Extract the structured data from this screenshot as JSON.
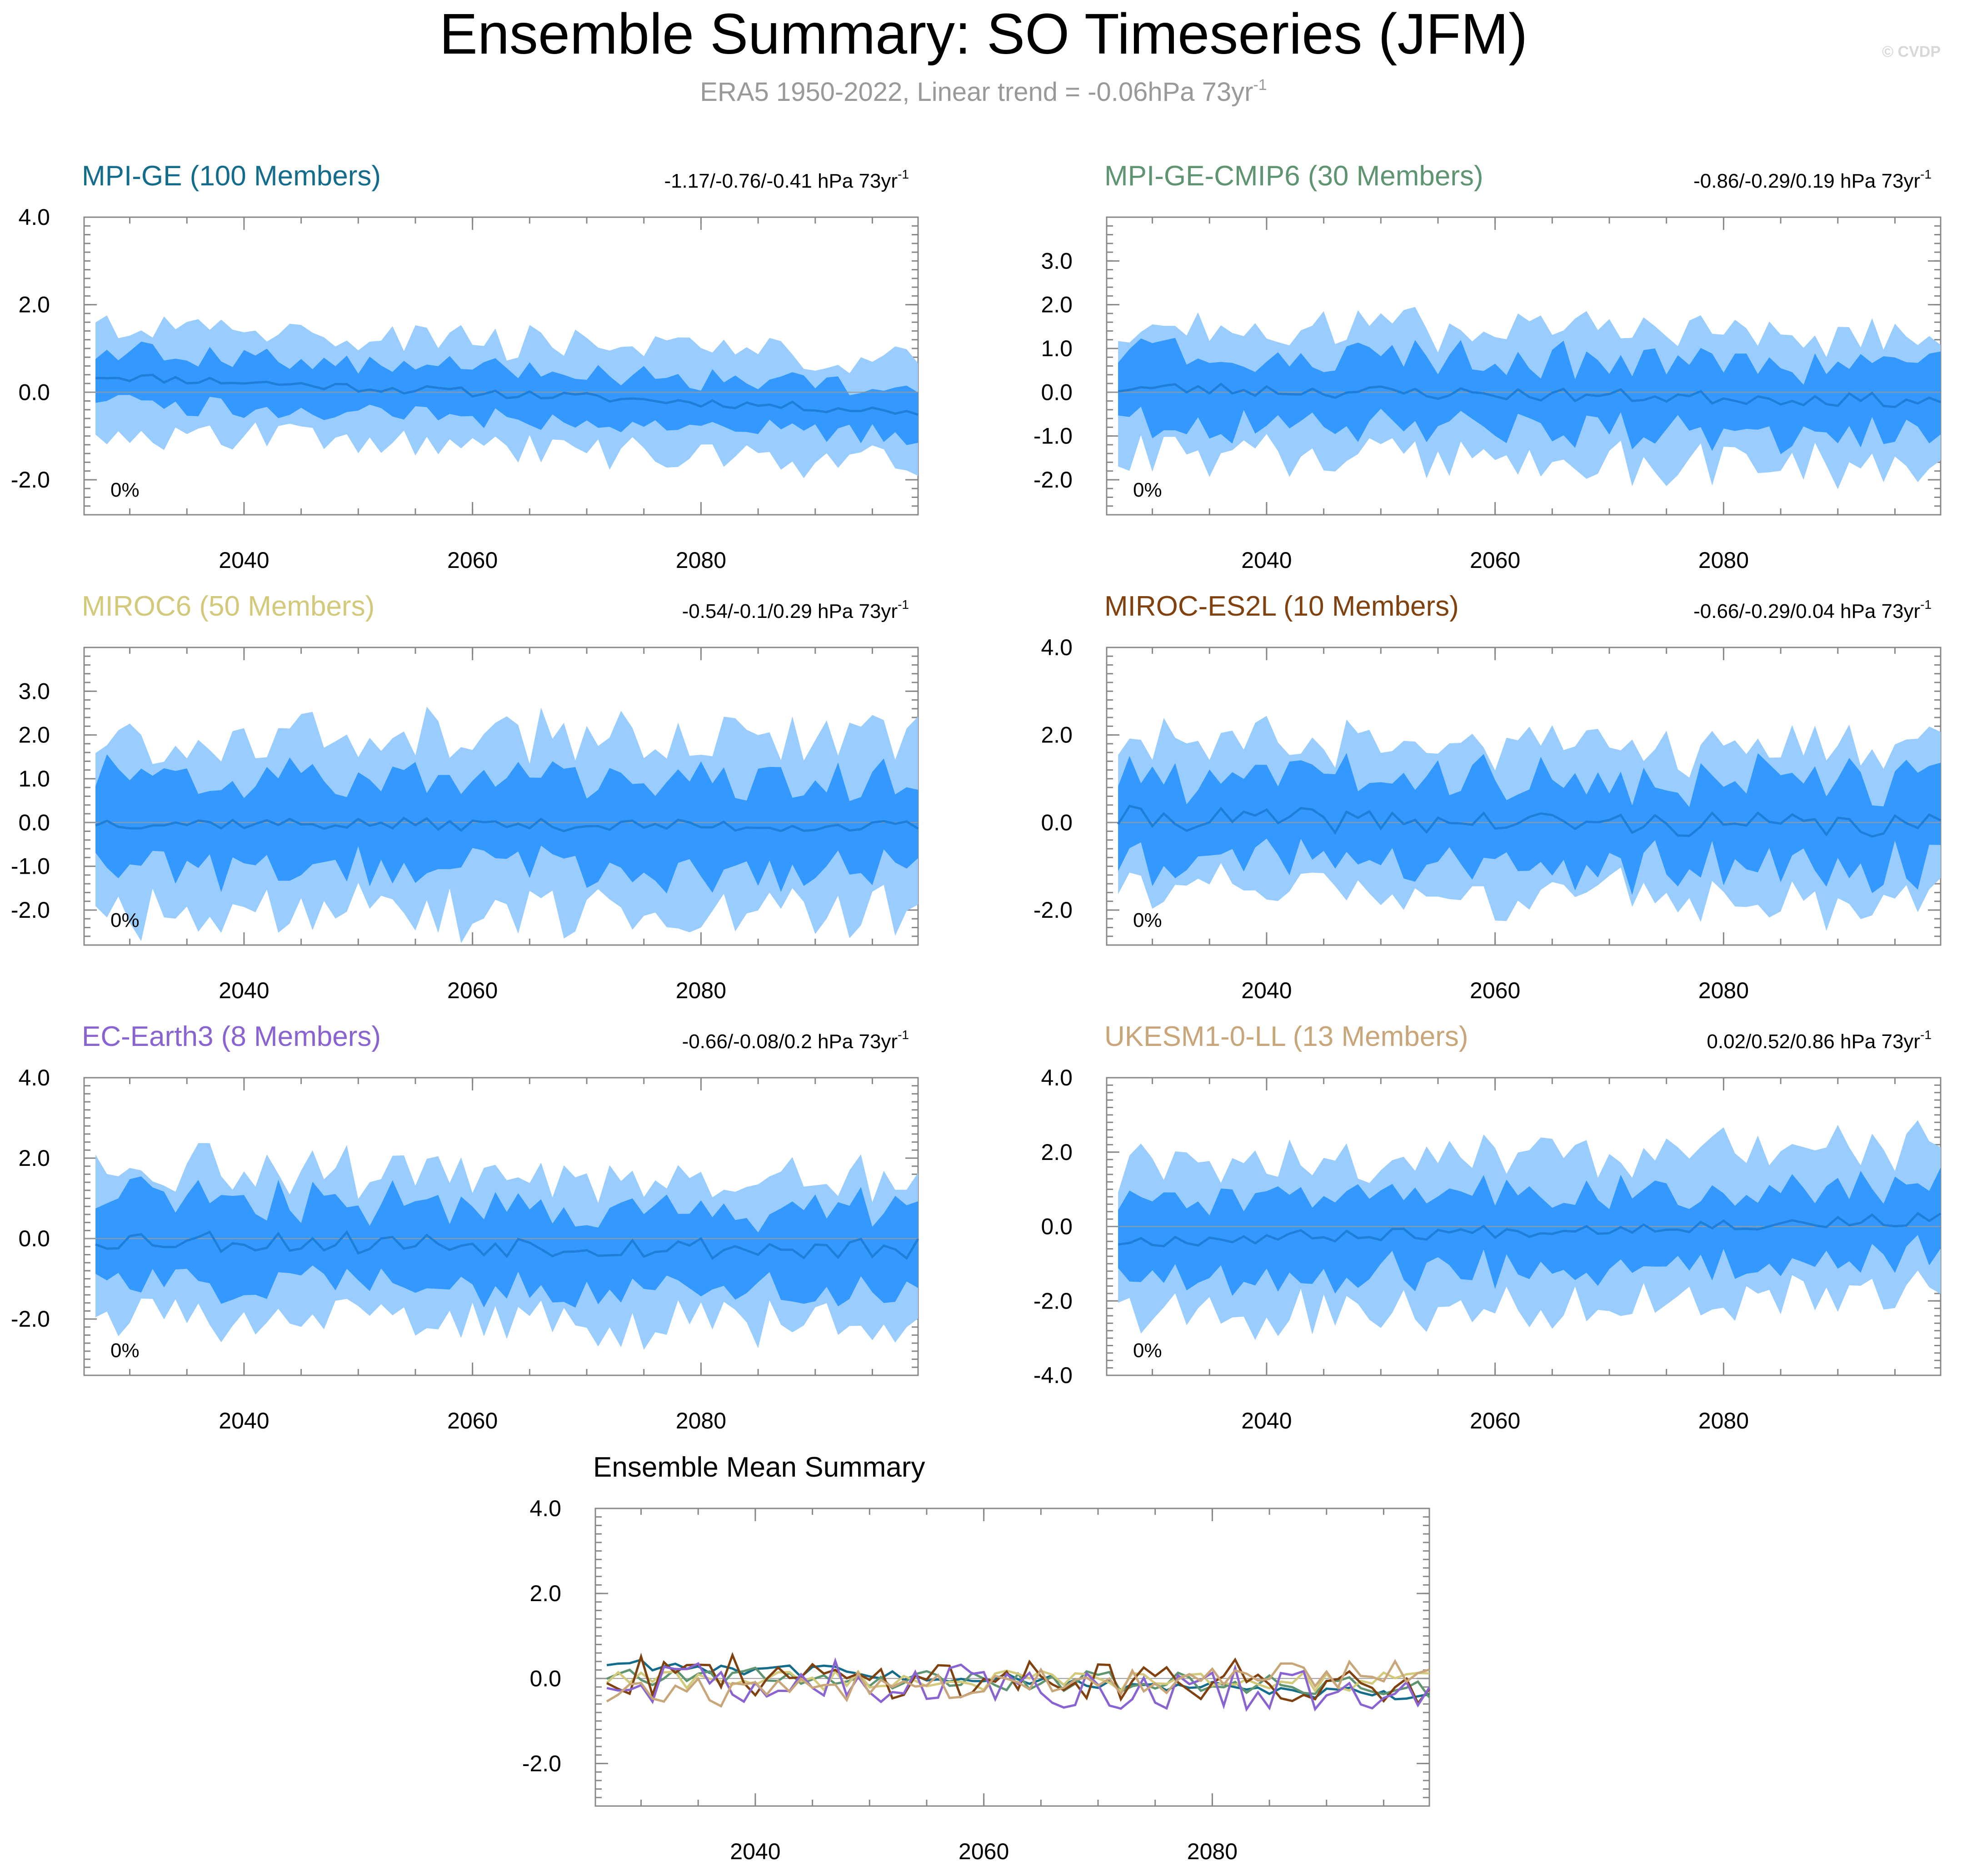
{
  "figure": {
    "title": "Ensemble Summary: SO Timeseries (JFM)",
    "subtitle_prefix": "ERA5 1950-2022, Linear trend = -0.06hPa 73yr",
    "subtitle_sup": "-1",
    "credit": "© CVDP"
  },
  "colors": {
    "outer_band": "#99ccff",
    "inner_band": "#3399ff",
    "mean_line": "#1f7fd8",
    "MPI-GE": "#136c8c",
    "MPI-GE-CMIP6": "#5e9470",
    "MIROC6": "#d2c97a",
    "MIROC-ES2L": "#80410f",
    "EC-Earth3": "#8a63d2",
    "UKESM1-0-LL": "#c9a679"
  },
  "chart_data": [
    {
      "type": "area",
      "id": "mpi-ge",
      "title": "MPI-GE (100 Members)",
      "color_key": "MPI-GE",
      "trend": "-1.17/-0.76/-0.41 hPa 73yr",
      "trend_sup": "-1",
      "percent": "0%",
      "xlim": [
        2026,
        2099
      ],
      "xticks": [
        "2040",
        "2060",
        "2080"
      ],
      "ylim": [
        -2.8,
        4.0
      ],
      "yticks": [
        "4.0",
        "2.0",
        "0.0",
        "-2.0"
      ],
      "mean_start": 0.38,
      "mean_end": -0.45,
      "inner_halfwidth": 0.55,
      "outer_halfwidth": 1.2,
      "noise": 0.3,
      "seed": 11
    },
    {
      "type": "area",
      "id": "mpi-ge-cmip6",
      "title": "MPI-GE-CMIP6 (30 Members)",
      "color_key": "MPI-GE-CMIP6",
      "trend": "-0.86/-0.29/0.19 hPa 73yr",
      "trend_sup": "-1",
      "percent": "0%",
      "xlim": [
        2026,
        2099
      ],
      "xticks": [
        "2040",
        "2060",
        "2080"
      ],
      "ylim": [
        -2.8,
        4.0
      ],
      "yticks": [
        "3.0",
        "2.0",
        "1.0",
        "0.0",
        "-1.0",
        "-2.0"
      ],
      "mean_start": 0.1,
      "mean_end": -0.2,
      "inner_halfwidth": 0.8,
      "outer_halfwidth": 1.5,
      "noise": 0.45,
      "seed": 23
    },
    {
      "type": "area",
      "id": "miroc6",
      "title": "MIROC6 (50 Members)",
      "color_key": "MIROC6",
      "trend": "-0.54/-0.1/0.29 hPa 73yr",
      "trend_sup": "-1",
      "percent": "0%",
      "xlim": [
        2026,
        2099
      ],
      "xticks": [
        "2040",
        "2060",
        "2080"
      ],
      "ylim": [
        -2.8,
        4.0
      ],
      "yticks": [
        "3.0",
        "2.0",
        "1.0",
        "0.0",
        "-1.0",
        "-2.0"
      ],
      "mean_start": 0.0,
      "mean_end": -0.1,
      "inner_halfwidth": 1.05,
      "outer_halfwidth": 2.0,
      "noise": 0.4,
      "seed": 37
    },
    {
      "type": "area",
      "id": "miroc-es2l",
      "title": "MIROC-ES2L (10 Members)",
      "color_key": "MIROC-ES2L",
      "trend": "-0.66/-0.29/0.04 hPa 73yr",
      "trend_sup": "-1",
      "percent": "0%",
      "xlim": [
        2026,
        2099
      ],
      "xticks": [
        "2040",
        "2060",
        "2080"
      ],
      "ylim": [
        -2.8,
        4.0
      ],
      "yticks": [
        "4.0",
        "2.0",
        "0.0",
        "-2.0"
      ],
      "mean_start": 0.1,
      "mean_end": -0.1,
      "inner_halfwidth": 1.0,
      "outer_halfwidth": 1.7,
      "noise": 0.8,
      "seed": 41
    },
    {
      "type": "area",
      "id": "ec-earth3",
      "title": "EC-Earth3 (8 Members)",
      "color_key": "EC-Earth3",
      "trend": "-0.66/-0.08/0.2 hPa 73yr",
      "trend_sup": "-1",
      "percent": "0%",
      "xlim": [
        2026,
        2099
      ],
      "xticks": [
        "2040",
        "2060",
        "2080"
      ],
      "ylim": [
        -3.4,
        4.0
      ],
      "yticks": [
        "4.0",
        "2.0",
        "0.0",
        "-2.0"
      ],
      "mean_start": 0.0,
      "mean_end": -0.3,
      "inner_halfwidth": 1.0,
      "outer_halfwidth": 1.8,
      "noise": 0.85,
      "seed": 53
    },
    {
      "type": "area",
      "id": "ukesm1-0-ll",
      "title": "UKESM1-0-LL (13 Members)",
      "color_key": "UKESM1-0-LL",
      "trend": "0.02/0.52/0.86 hPa 73yr",
      "trend_sup": "-1",
      "percent": "0%",
      "xlim": [
        2026,
        2099
      ],
      "xticks": [
        "2040",
        "2060",
        "2080"
      ],
      "ylim": [
        -4.0,
        4.0
      ],
      "yticks": [
        "4.0",
        "2.0",
        "0.0",
        "-2.0",
        "-4.0"
      ],
      "mean_start": -0.4,
      "mean_end": 0.2,
      "inner_halfwidth": 1.0,
      "outer_halfwidth": 2.0,
      "noise": 0.5,
      "seed": 67
    },
    {
      "type": "line",
      "id": "ensemble-mean",
      "title": "Ensemble Mean Summary",
      "xlim": [
        2026,
        2099
      ],
      "xticks": [
        "2040",
        "2060",
        "2080"
      ],
      "ylim": [
        -3.0,
        4.0
      ],
      "yticks": [
        "4.0",
        "2.0",
        "0.0",
        "-2.0"
      ],
      "series": [
        {
          "name": "MPI-GE",
          "color_key": "MPI-GE",
          "start": 0.38,
          "end": -0.45,
          "noise": 0.15,
          "seed": 11
        },
        {
          "name": "MPI-GE-CMIP6",
          "color_key": "MPI-GE-CMIP6",
          "start": 0.1,
          "end": -0.2,
          "noise": 0.25,
          "seed": 23
        },
        {
          "name": "MIROC6",
          "color_key": "MIROC6",
          "start": 0.0,
          "end": -0.1,
          "noise": 0.25,
          "seed": 37
        },
        {
          "name": "MIROC-ES2L",
          "color_key": "MIROC-ES2L",
          "start": 0.1,
          "end": -0.1,
          "noise": 0.5,
          "seed": 41
        },
        {
          "name": "EC-Earth3",
          "color_key": "EC-Earth3",
          "start": 0.0,
          "end": -0.3,
          "noise": 0.55,
          "seed": 53
        },
        {
          "name": "UKESM1-0-LL",
          "color_key": "UKESM1-0-LL",
          "start": -0.4,
          "end": 0.2,
          "noise": 0.35,
          "seed": 67
        }
      ]
    }
  ]
}
